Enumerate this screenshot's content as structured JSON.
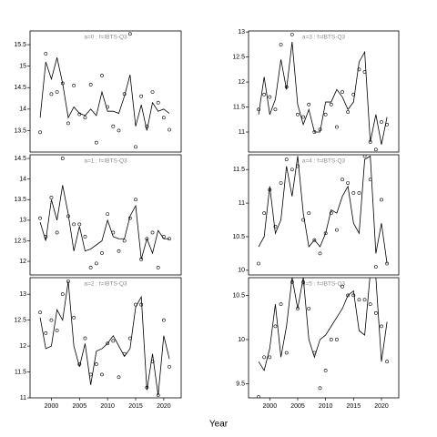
{
  "x_label": "Year",
  "chart_data": [
    {
      "type": "line",
      "title": "a=0  :  f=IBTS-Q3",
      "x": [
        1998,
        1999,
        2000,
        2001,
        2002,
        2003,
        2004,
        2005,
        2006,
        2007,
        2008,
        2009,
        2010,
        2011,
        2012,
        2013,
        2014,
        2015,
        2016,
        2017,
        2018,
        2019,
        2020,
        2021
      ],
      "xlim": [
        1996.2,
        2023.1
      ],
      "ylim": [
        13.0,
        15.82
      ],
      "yticks": [
        13.5,
        14.0,
        14.5,
        15.0,
        15.5
      ],
      "series": [
        {
          "style": "points",
          "color": "#000000",
          "values": [
            13.46,
            15.29,
            14.35,
            14.4,
            14.6,
            13.67,
            14.55,
            13.88,
            13.8,
            14.57,
            13.22,
            14.78,
            14.05,
            13.6,
            13.5,
            14.35,
            15.75,
            13.12,
            14.3,
            13.6,
            14.4,
            14.15,
            13.8,
            13.52
          ]
        },
        {
          "style": "line",
          "color": "#000000",
          "values": [
            13.8,
            15.1,
            14.7,
            15.2,
            14.6,
            13.8,
            14.05,
            13.9,
            13.85,
            14.0,
            13.85,
            14.4,
            13.95,
            13.95,
            13.9,
            14.3,
            14.8,
            13.6,
            14.1,
            13.5,
            14.15,
            13.95,
            14.0,
            13.9
          ]
        }
      ]
    },
    {
      "type": "line",
      "title": "a=1  :  f=IBTS-Q3",
      "x": [
        1998,
        1999,
        2000,
        2001,
        2002,
        2003,
        2004,
        2005,
        2006,
        2007,
        2008,
        2009,
        2010,
        2011,
        2012,
        2013,
        2014,
        2015,
        2016,
        2017,
        2018,
        2019,
        2020,
        2021
      ],
      "xlim": [
        1996.2,
        2023.1
      ],
      "ylim": [
        11.67,
        14.59
      ],
      "yticks": [
        12.0,
        12.5,
        13.0,
        13.5,
        14.0,
        14.5
      ],
      "series": [
        {
          "style": "points",
          "color": "#000000",
          "values": [
            13.05,
            12.6,
            13.55,
            12.7,
            14.5,
            13.1,
            12.9,
            12.9,
            12.6,
            11.85,
            11.95,
            12.2,
            13.15,
            12.7,
            12.25,
            12.5,
            13.05,
            13.5,
            12.05,
            12.55,
            12.7,
            11.85,
            12.6,
            12.55
          ]
        },
        {
          "style": "line",
          "color": "#000000",
          "values": [
            12.95,
            12.5,
            13.5,
            13.0,
            13.85,
            13.15,
            12.25,
            12.85,
            12.25,
            12.3,
            12.4,
            12.5,
            13.0,
            12.6,
            12.55,
            12.55,
            13.1,
            13.35,
            12.05,
            12.55,
            12.2,
            12.75,
            12.55,
            12.55
          ]
        }
      ]
    },
    {
      "type": "line",
      "title": "a=2  :  f=IBTS-Q3",
      "x": [
        1998,
        1999,
        2000,
        2001,
        2002,
        2003,
        2004,
        2005,
        2006,
        2007,
        2008,
        2009,
        2010,
        2011,
        2012,
        2013,
        2014,
        2015,
        2016,
        2017,
        2018,
        2019,
        2020,
        2021
      ],
      "xlim": [
        1996.2,
        2023.1
      ],
      "ylim": [
        11.0,
        13.32
      ],
      "yticks": [
        11.0,
        11.5,
        12.0,
        12.5,
        13.0
      ],
      "xticks": [
        2000,
        2005,
        2010,
        2015,
        2020
      ],
      "series": [
        {
          "style": "points",
          "color": "#000000",
          "values": [
            12.65,
            12.25,
            12.5,
            12.3,
            13.0,
            13.25,
            12.55,
            11.65,
            12.15,
            11.45,
            11.65,
            11.45,
            12.05,
            12.1,
            11.4,
            11.85,
            12.15,
            12.8,
            12.8,
            11.2,
            11.7,
            11.05,
            12.5,
            11.6
          ]
        },
        {
          "style": "line",
          "color": "#000000",
          "values": [
            12.55,
            11.95,
            12.0,
            12.7,
            12.5,
            13.25,
            12.0,
            11.6,
            12.05,
            11.25,
            11.9,
            11.95,
            12.05,
            12.2,
            12.0,
            11.8,
            11.95,
            12.75,
            12.95,
            11.15,
            11.85,
            11.05,
            12.2,
            11.75
          ]
        }
      ]
    },
    {
      "type": "line",
      "title": "a=3  :  f=IBTS-Q3",
      "x": [
        1998,
        1999,
        2000,
        2001,
        2002,
        2003,
        2004,
        2005,
        2006,
        2007,
        2008,
        2009,
        2010,
        2011,
        2012,
        2013,
        2014,
        2015,
        2016,
        2017,
        2018,
        2019,
        2020,
        2021
      ],
      "xlim": [
        1996.2,
        2023.1
      ],
      "ylim": [
        10.6,
        13.02
      ],
      "yticks": [
        11.0,
        11.5,
        12.0,
        12.5,
        13.0
      ],
      "series": [
        {
          "style": "points",
          "color": "#000000",
          "values": [
            11.45,
            11.75,
            11.7,
            11.45,
            12.75,
            11.9,
            12.95,
            11.35,
            11.3,
            11.55,
            11.0,
            11.05,
            11.35,
            11.55,
            11.1,
            11.8,
            11.4,
            11.75,
            12.25,
            12.2,
            10.8,
            10.65,
            11.2,
            11.15
          ]
        },
        {
          "style": "line",
          "color": "#000000",
          "values": [
            11.35,
            12.1,
            11.35,
            11.65,
            12.45,
            11.85,
            12.8,
            11.55,
            11.15,
            11.45,
            11.0,
            11.0,
            11.6,
            11.6,
            11.85,
            11.7,
            11.45,
            11.6,
            12.4,
            12.6,
            10.8,
            11.35,
            10.75,
            11.3
          ]
        }
      ]
    },
    {
      "type": "line",
      "title": "a=4  :  f=IBTS-Q3",
      "x": [
        1998,
        1999,
        2000,
        2001,
        2002,
        2003,
        2004,
        2005,
        2006,
        2007,
        2008,
        2009,
        2010,
        2011,
        2012,
        2013,
        2014,
        2015,
        2016,
        2017,
        2018,
        2019,
        2020,
        2021
      ],
      "xlim": [
        1996.2,
        2023.1
      ],
      "ylim": [
        9.93,
        11.72
      ],
      "yticks": [
        10.0,
        10.5,
        11.0,
        11.5
      ],
      "series": [
        {
          "style": "points",
          "color": "#000000",
          "values": [
            10.1,
            10.85,
            11.2,
            10.65,
            11.3,
            11.65,
            11.5,
            11.55,
            10.75,
            10.85,
            10.45,
            10.25,
            10.55,
            10.85,
            10.6,
            11.35,
            11.3,
            11.15,
            11.15,
            11.7,
            11.35,
            10.05,
            11.05,
            10.1
          ]
        },
        {
          "style": "line",
          "color": "#000000",
          "values": [
            10.35,
            10.5,
            11.25,
            10.55,
            10.75,
            11.55,
            11.1,
            11.7,
            10.85,
            10.35,
            10.45,
            10.35,
            10.55,
            10.9,
            10.85,
            11.1,
            11.25,
            10.7,
            10.55,
            11.65,
            11.7,
            10.25,
            10.7,
            10.1
          ]
        }
      ]
    },
    {
      "type": "line",
      "title": "a=5  :  f=IBTS-Q3",
      "x": [
        1998,
        1999,
        2000,
        2001,
        2002,
        2003,
        2004,
        2005,
        2006,
        2007,
        2008,
        2009,
        2010,
        2011,
        2012,
        2013,
        2014,
        2015,
        2016,
        2017,
        2018,
        2019,
        2020,
        2021
      ],
      "xlim": [
        1996.2,
        2023.1
      ],
      "ylim": [
        9.34,
        10.7
      ],
      "yticks": [
        9.5,
        10.0,
        10.5
      ],
      "xticks": [
        2000,
        2005,
        2010,
        2015,
        2020
      ],
      "series": [
        {
          "style": "points",
          "color": "#000000",
          "values": [
            9.35,
            9.8,
            9.8,
            10.15,
            10.4,
            9.85,
            10.65,
            10.35,
            10.65,
            10.35,
            9.85,
            9.45,
            9.65,
            10.0,
            10.0,
            10.6,
            10.5,
            10.5,
            10.45,
            10.45,
            10.4,
            10.3,
            10.15,
            9.75
          ]
        },
        {
          "style": "line",
          "color": "#000000",
          "values": [
            9.75,
            9.65,
            9.9,
            10.4,
            9.8,
            10.15,
            10.7,
            10.35,
            10.7,
            10.0,
            9.8,
            10.0,
            10.05,
            10.15,
            10.25,
            10.35,
            10.5,
            10.55,
            10.1,
            10.05,
            10.75,
            10.7,
            9.75,
            10.2
          ]
        }
      ]
    }
  ]
}
